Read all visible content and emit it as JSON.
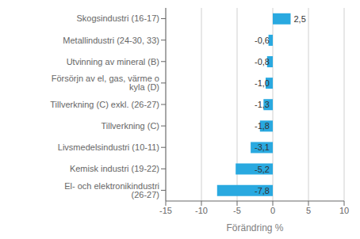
{
  "chart_data": {
    "type": "bar",
    "orientation": "horizontal",
    "categories": [
      "El- och elektronikindustri (26-27)",
      "Kemisk industri (19-22)",
      "Livsmedelsindustri (10-11)",
      "Tillverkning (C)",
      "Tillverkning (C) exkl. (26-27)",
      "Försörjn av el, gas, värme o kyla (D)",
      "Utvinning av mineral (B)",
      "Metallindustri (24-30, 33)",
      "Skogsindustri (16-17)"
    ],
    "values": [
      -7.8,
      -5.2,
      -3.1,
      -1.8,
      -1.3,
      -1.0,
      -0.8,
      -0.6,
      2.5
    ],
    "value_labels": [
      "-7,8",
      "-5,2",
      "-3,1",
      "-1,8",
      "-1,3",
      "-1,0",
      "-0,8",
      "-0,6",
      "2,5"
    ],
    "data_labels": true,
    "color": "#29a9e0",
    "xlabel": "Förändring %",
    "xlim": [
      -15,
      10
    ],
    "xticks": [
      -15,
      -10,
      -5,
      0,
      5,
      10
    ],
    "grid": true
  }
}
